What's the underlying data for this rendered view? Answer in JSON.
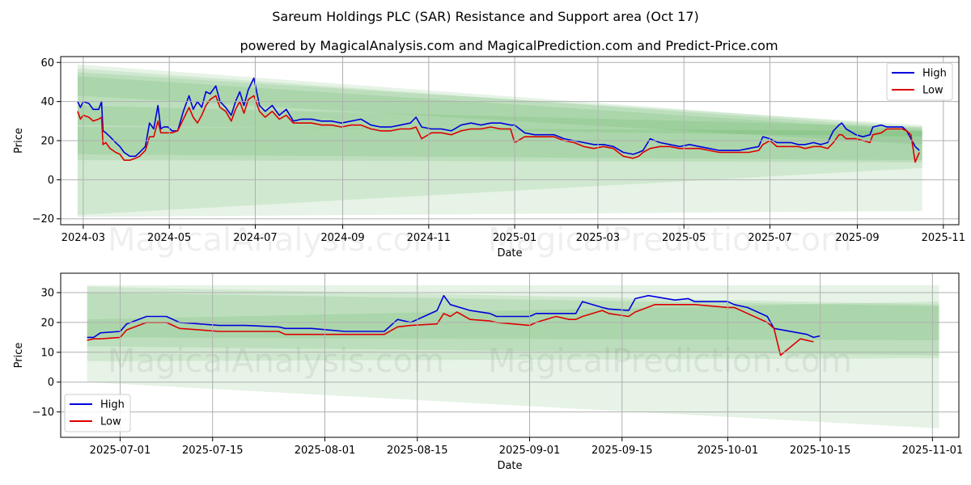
{
  "header": {
    "title": "Sareum Holdings PLC (SAR) Resistance and Support area (Oct 17)",
    "subtitle": "powered by MagicalAnalysis.com and MagicalPrediction.com and Predict-Price.com"
  },
  "watermarks": [
    "MagicalAnalysis.com",
    "MagicalPrediction.com"
  ],
  "colors": {
    "high": "#0000dd",
    "low": "#dd0000",
    "band": "#2e9a2e"
  },
  "chart_data": [
    {
      "type": "line",
      "xlabel": "Date",
      "ylabel": "Price",
      "xlim": [
        "2024-02-14",
        "2025-11-12"
      ],
      "ylim": [
        -23,
        63
      ],
      "grid": true,
      "legend": "top-right",
      "x_ticks": [
        "2024-03",
        "2024-05",
        "2024-07",
        "2024-09",
        "2024-11",
        "2025-01",
        "2025-03",
        "2025-05",
        "2025-07",
        "2025-09",
        "2025-11"
      ],
      "y_ticks": [
        -20,
        0,
        20,
        40,
        60
      ],
      "bands": [
        {
          "start": "2024-02-26",
          "end": "2025-10-17",
          "upper": [
            59,
            27
          ],
          "lower": [
            -19,
            -16
          ]
        },
        {
          "start": "2024-02-26",
          "end": "2025-10-17",
          "upper": [
            57,
            26
          ],
          "lower": [
            10,
            9
          ]
        },
        {
          "start": "2024-02-26",
          "end": "2025-10-17",
          "upper": [
            55,
            28
          ],
          "lower": [
            43,
            18
          ]
        },
        {
          "start": "2024-02-26",
          "end": "2025-10-17",
          "upper": [
            53,
            25
          ],
          "lower": [
            28,
            22
          ]
        },
        {
          "start": "2024-02-26",
          "end": "2025-10-17",
          "upper": [
            38,
            27
          ],
          "lower": [
            -18,
            6
          ]
        },
        {
          "start": "2024-02-26",
          "end": "2025-10-17",
          "upper": [
            27,
            25
          ],
          "lower": [
            13,
            10
          ]
        }
      ],
      "series": [
        {
          "name": "High",
          "x": [
            "2024-02-26",
            "2024-02-28",
            "2024-03-01",
            "2024-03-05",
            "2024-03-08",
            "2024-03-12",
            "2024-03-14",
            "2024-03-15",
            "2024-03-17",
            "2024-03-20",
            "2024-03-24",
            "2024-03-27",
            "2024-03-30",
            "2024-04-03",
            "2024-04-07",
            "2024-04-10",
            "2024-04-14",
            "2024-04-17",
            "2024-04-20",
            "2024-04-23",
            "2024-04-25",
            "2024-04-27",
            "2024-04-30",
            "2024-05-03",
            "2024-05-07",
            "2024-05-11",
            "2024-05-15",
            "2024-05-18",
            "2024-05-21",
            "2024-05-24",
            "2024-05-27",
            "2024-05-30",
            "2024-06-03",
            "2024-06-06",
            "2024-06-10",
            "2024-06-14",
            "2024-06-17",
            "2024-06-20",
            "2024-06-23",
            "2024-06-26",
            "2024-06-30",
            "2024-07-04",
            "2024-07-08",
            "2024-07-13",
            "2024-07-18",
            "2024-07-23",
            "2024-07-28",
            "2024-08-03",
            "2024-08-10",
            "2024-08-17",
            "2024-08-24",
            "2024-08-31",
            "2024-09-07",
            "2024-09-14",
            "2024-09-21",
            "2024-09-28",
            "2024-10-05",
            "2024-10-12",
            "2024-10-19",
            "2024-10-23",
            "2024-10-27",
            "2024-11-03",
            "2024-11-10",
            "2024-11-17",
            "2024-11-24",
            "2024-12-01",
            "2024-12-08",
            "2024-12-15",
            "2024-12-22",
            "2024-12-29",
            "2025-01-01",
            "2025-01-08",
            "2025-01-15",
            "2025-01-22",
            "2025-01-29",
            "2025-02-05",
            "2025-02-12",
            "2025-02-19",
            "2025-02-26",
            "2025-03-05",
            "2025-03-12",
            "2025-03-19",
            "2025-03-26",
            "2025-03-30",
            "2025-04-02",
            "2025-04-07",
            "2025-04-14",
            "2025-04-21",
            "2025-04-28",
            "2025-05-05",
            "2025-05-12",
            "2025-05-19",
            "2025-05-26",
            "2025-06-02",
            "2025-06-09",
            "2025-06-16",
            "2025-06-23",
            "2025-06-26",
            "2025-07-01",
            "2025-07-06",
            "2025-07-11",
            "2025-07-16",
            "2025-07-21",
            "2025-07-26",
            "2025-08-01",
            "2025-08-06",
            "2025-08-11",
            "2025-08-15",
            "2025-08-19",
            "2025-08-21",
            "2025-08-24",
            "2025-08-31",
            "2025-09-05",
            "2025-09-10",
            "2025-09-12",
            "2025-09-18",
            "2025-09-22",
            "2025-09-27",
            "2025-10-03",
            "2025-10-06",
            "2025-10-09",
            "2025-10-12",
            "2025-10-15"
          ],
          "values": [
            40,
            37,
            40,
            39,
            36,
            36,
            40,
            25,
            24,
            22,
            19,
            17,
            14,
            12,
            12,
            14,
            17,
            29,
            26,
            38,
            26,
            27,
            27,
            25,
            25,
            35,
            43,
            36,
            40,
            37,
            45,
            44,
            48,
            40,
            37,
            33,
            40,
            45,
            38,
            46,
            52,
            38,
            35,
            38,
            33,
            36,
            30,
            31,
            31,
            30,
            30,
            29,
            30,
            31,
            28,
            27,
            27,
            28,
            29,
            32,
            27,
            26,
            26,
            25,
            28,
            29,
            28,
            29,
            29,
            28,
            28,
            24,
            23,
            23,
            23,
            21,
            20,
            19,
            18,
            18,
            17,
            14,
            13,
            14,
            15,
            21,
            19,
            18,
            17,
            18,
            17,
            16,
            15,
            15,
            15,
            16,
            17,
            22,
            21,
            19,
            19,
            19,
            18,
            18,
            19,
            18,
            19,
            25,
            28,
            29,
            26,
            23,
            22,
            23,
            27,
            28,
            27,
            27,
            27,
            25,
            21,
            17,
            15
          ]
        },
        {
          "name": "Low",
          "x": [
            "2024-02-26",
            "2024-02-28",
            "2024-03-01",
            "2024-03-05",
            "2024-03-08",
            "2024-03-12",
            "2024-03-14",
            "2024-03-15",
            "2024-03-17",
            "2024-03-20",
            "2024-03-24",
            "2024-03-27",
            "2024-03-30",
            "2024-04-03",
            "2024-04-07",
            "2024-04-10",
            "2024-04-14",
            "2024-04-17",
            "2024-04-20",
            "2024-04-23",
            "2024-04-25",
            "2024-04-27",
            "2024-04-30",
            "2024-05-03",
            "2024-05-07",
            "2024-05-11",
            "2024-05-15",
            "2024-05-18",
            "2024-05-21",
            "2024-05-24",
            "2024-05-27",
            "2024-05-30",
            "2024-06-03",
            "2024-06-06",
            "2024-06-10",
            "2024-06-14",
            "2024-06-17",
            "2024-06-20",
            "2024-06-23",
            "2024-06-26",
            "2024-06-30",
            "2024-07-04",
            "2024-07-08",
            "2024-07-13",
            "2024-07-18",
            "2024-07-23",
            "2024-07-28",
            "2024-08-03",
            "2024-08-10",
            "2024-08-17",
            "2024-08-24",
            "2024-08-31",
            "2024-09-07",
            "2024-09-14",
            "2024-09-21",
            "2024-09-28",
            "2024-10-05",
            "2024-10-12",
            "2024-10-19",
            "2024-10-23",
            "2024-10-27",
            "2024-11-03",
            "2024-11-10",
            "2024-11-17",
            "2024-11-24",
            "2024-12-01",
            "2024-12-08",
            "2024-12-15",
            "2024-12-22",
            "2024-12-29",
            "2025-01-01",
            "2025-01-08",
            "2025-01-15",
            "2025-01-22",
            "2025-01-29",
            "2025-02-05",
            "2025-02-12",
            "2025-02-19",
            "2025-02-26",
            "2025-03-05",
            "2025-03-12",
            "2025-03-19",
            "2025-03-26",
            "2025-03-30",
            "2025-04-02",
            "2025-04-07",
            "2025-04-14",
            "2025-04-21",
            "2025-04-28",
            "2025-05-05",
            "2025-05-12",
            "2025-05-19",
            "2025-05-26",
            "2025-06-02",
            "2025-06-09",
            "2025-06-16",
            "2025-06-23",
            "2025-06-26",
            "2025-07-01",
            "2025-07-06",
            "2025-07-11",
            "2025-07-16",
            "2025-07-21",
            "2025-07-26",
            "2025-08-01",
            "2025-08-06",
            "2025-08-11",
            "2025-08-15",
            "2025-08-19",
            "2025-08-21",
            "2025-08-24",
            "2025-08-31",
            "2025-09-05",
            "2025-09-10",
            "2025-09-12",
            "2025-09-18",
            "2025-09-22",
            "2025-09-27",
            "2025-10-03",
            "2025-10-06",
            "2025-10-09",
            "2025-10-12",
            "2025-10-15"
          ],
          "values": [
            35,
            31,
            33,
            32,
            30,
            31,
            32,
            18,
            19,
            16,
            14,
            13,
            10,
            10,
            11,
            12,
            15,
            22,
            22,
            30,
            24,
            24,
            24,
            24,
            25,
            31,
            37,
            32,
            29,
            33,
            38,
            41,
            43,
            37,
            35,
            30,
            36,
            40,
            34,
            41,
            43,
            35,
            32,
            35,
            31,
            33,
            29,
            29,
            29,
            28,
            28,
            27,
            28,
            28,
            26,
            25,
            25,
            26,
            26,
            27,
            21,
            24,
            24,
            23,
            25,
            26,
            26,
            27,
            26,
            26,
            19,
            22,
            22,
            22,
            22,
            20,
            19,
            17,
            16,
            17,
            16,
            12,
            11,
            12,
            14,
            16,
            17,
            17,
            16,
            16,
            16,
            15,
            14,
            14,
            14,
            14,
            15,
            18,
            20,
            17,
            17,
            17,
            17,
            16,
            17,
            17,
            16,
            19,
            23,
            23,
            21,
            21,
            20,
            19,
            23,
            24,
            26,
            26,
            26,
            25,
            23,
            9,
            14
          ]
        }
      ]
    },
    {
      "type": "line",
      "xlabel": "Date",
      "ylabel": "Price",
      "xlim": [
        "2025-06-22",
        "2025-11-05"
      ],
      "ylim": [
        -18.5,
        36.5
      ],
      "grid": true,
      "legend": "bottom-left",
      "x_ticks": [
        "2025-07-01",
        "2025-07-15",
        "2025-08-01",
        "2025-08-15",
        "2025-09-01",
        "2025-09-15",
        "2025-10-01",
        "2025-10-15",
        "2025-11-01"
      ],
      "y_ticks": [
        -10,
        0,
        10,
        20,
        30
      ],
      "bands": [
        {
          "start": "2025-06-26",
          "end": "2025-11-02",
          "upper": [
            32.5,
            32.5
          ],
          "lower": [
            0,
            -15.5
          ]
        },
        {
          "start": "2025-06-26",
          "end": "2025-11-02",
          "upper": [
            32,
            26
          ],
          "lower": [
            7,
            8
          ]
        },
        {
          "start": "2025-06-26",
          "end": "2025-11-02",
          "upper": [
            21,
            27
          ],
          "lower": [
            12,
            9
          ]
        },
        {
          "start": "2025-06-26",
          "end": "2025-11-02",
          "upper": [
            30,
            25.5
          ],
          "lower": [
            15,
            14
          ]
        }
      ],
      "series": [
        {
          "name": "High",
          "x": [
            "2025-06-26",
            "2025-06-27",
            "2025-06-28",
            "2025-07-01",
            "2025-07-02",
            "2025-07-05",
            "2025-07-08",
            "2025-07-09",
            "2025-07-10",
            "2025-07-13",
            "2025-07-16",
            "2025-07-17",
            "2025-07-20",
            "2025-07-25",
            "2025-07-26",
            "2025-07-30",
            "2025-08-04",
            "2025-08-07",
            "2025-08-10",
            "2025-08-12",
            "2025-08-14",
            "2025-08-18",
            "2025-08-19",
            "2025-08-20",
            "2025-08-23",
            "2025-08-26",
            "2025-08-27",
            "2025-09-01",
            "2025-09-02",
            "2025-09-07",
            "2025-09-08",
            "2025-09-09",
            "2025-09-12",
            "2025-09-13",
            "2025-09-16",
            "2025-09-17",
            "2025-09-19",
            "2025-09-23",
            "2025-09-25",
            "2025-09-26",
            "2025-10-01",
            "2025-10-02",
            "2025-10-04",
            "2025-10-07",
            "2025-10-08",
            "2025-10-13",
            "2025-10-14",
            "2025-10-15"
          ],
          "values": [
            15,
            15,
            16.5,
            17,
            19.5,
            22,
            22,
            21,
            20,
            19.5,
            19,
            19,
            19,
            18.5,
            18,
            18,
            17,
            17,
            17,
            21,
            20,
            24,
            29,
            26,
            24,
            23,
            22,
            22,
            23,
            23,
            23,
            27,
            25,
            24.5,
            24,
            28,
            29,
            27.5,
            28,
            27,
            27,
            26,
            25,
            22,
            18,
            16,
            15,
            15.5
          ]
        },
        {
          "name": "Low",
          "x": [
            "2025-06-26",
            "2025-06-27",
            "2025-06-28",
            "2025-07-01",
            "2025-07-02",
            "2025-07-05",
            "2025-07-08",
            "2025-07-09",
            "2025-07-10",
            "2025-07-13",
            "2025-07-16",
            "2025-07-17",
            "2025-07-20",
            "2025-07-25",
            "2025-07-26",
            "2025-07-30",
            "2025-08-04",
            "2025-08-07",
            "2025-08-10",
            "2025-08-12",
            "2025-08-14",
            "2025-08-18",
            "2025-08-19",
            "2025-08-20",
            "2025-08-21",
            "2025-08-23",
            "2025-08-26",
            "2025-08-27",
            "2025-09-01",
            "2025-09-02",
            "2025-09-05",
            "2025-09-07",
            "2025-09-08",
            "2025-09-09",
            "2025-09-12",
            "2025-09-13",
            "2025-09-16",
            "2025-09-17",
            "2025-09-20",
            "2025-09-22",
            "2025-09-23",
            "2025-09-26",
            "2025-10-01",
            "2025-10-02",
            "2025-10-04",
            "2025-10-07",
            "2025-10-08",
            "2025-10-09",
            "2025-10-12",
            "2025-10-14"
          ],
          "values": [
            14,
            14.5,
            14.5,
            15,
            17.5,
            20,
            20,
            19,
            18,
            17.5,
            17,
            17,
            17,
            17,
            16,
            16,
            16,
            16,
            16,
            18.5,
            19,
            19.5,
            23,
            22,
            23.5,
            21,
            20.5,
            20,
            19,
            20,
            22,
            21,
            21,
            22,
            24,
            23,
            22,
            23.5,
            26,
            26,
            26,
            26,
            25,
            25,
            23,
            20,
            18,
            9,
            14.5,
            13.5
          ]
        }
      ]
    }
  ]
}
